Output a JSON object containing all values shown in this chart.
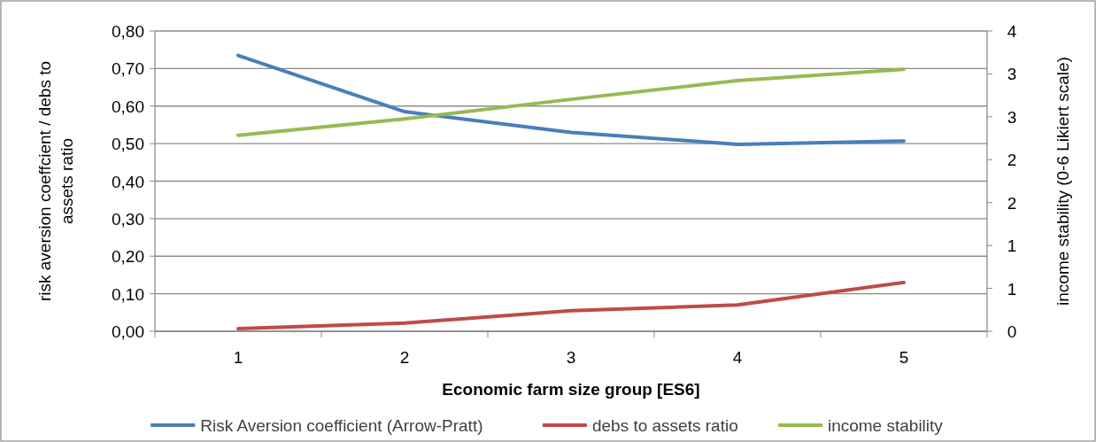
{
  "chart_data": {
    "type": "line",
    "xlabel": "Economic farm size group [ES6]",
    "ylabel": "risk aversion coeffcient / debs to\nassets  ratio",
    "y2label": "income stability (0-6 Likiert  scale)",
    "categories": [
      "1",
      "2",
      "3",
      "4",
      "5"
    ],
    "series": [
      {
        "name": "Risk Aversion coefficient (Arrow-Pratt)",
        "color": "#4a7ebb",
        "values": [
          0.735,
          0.585,
          0.53,
          0.498,
          0.507
        ]
      },
      {
        "name": "debs to assets ratio",
        "color": "#be4b48",
        "values": [
          0.007,
          0.022,
          0.055,
          0.07,
          0.13
        ]
      },
      {
        "name": "income stability",
        "color": "#98b954",
        "axis": "y2",
        "values": [
          2.61,
          2.83,
          3.09,
          3.34,
          3.49
        ]
      }
    ],
    "ylim": [
      0,
      0.8
    ],
    "yticks": [
      {
        "value": 0,
        "label": "0,00"
      },
      {
        "value": 0.1,
        "label": "0,10"
      },
      {
        "value": 0.2,
        "label": "0,20"
      },
      {
        "value": 0.3,
        "label": "0,30"
      },
      {
        "value": 0.4,
        "label": "0,40"
      },
      {
        "value": 0.5,
        "label": "0,50"
      },
      {
        "value": 0.6,
        "label": "0,60"
      },
      {
        "value": 0.7,
        "label": "0,70"
      },
      {
        "value": 0.8,
        "label": "0,80"
      }
    ],
    "y2lim": [
      0,
      4
    ],
    "y2ticks": [
      0,
      {
        "value": 0.5714,
        "label": "1"
      },
      {
        "value": 1.1429,
        "label": "1"
      },
      {
        "value": 1.7143,
        "label": "2"
      },
      {
        "value": 2.2857,
        "label": "2"
      },
      {
        "value": 2.8571,
        "label": "3"
      },
      {
        "value": 3.4286,
        "label": "3"
      },
      4
    ],
    "grid": "y",
    "legend": "bottom",
    "marker": "none",
    "line_style": "solid"
  }
}
